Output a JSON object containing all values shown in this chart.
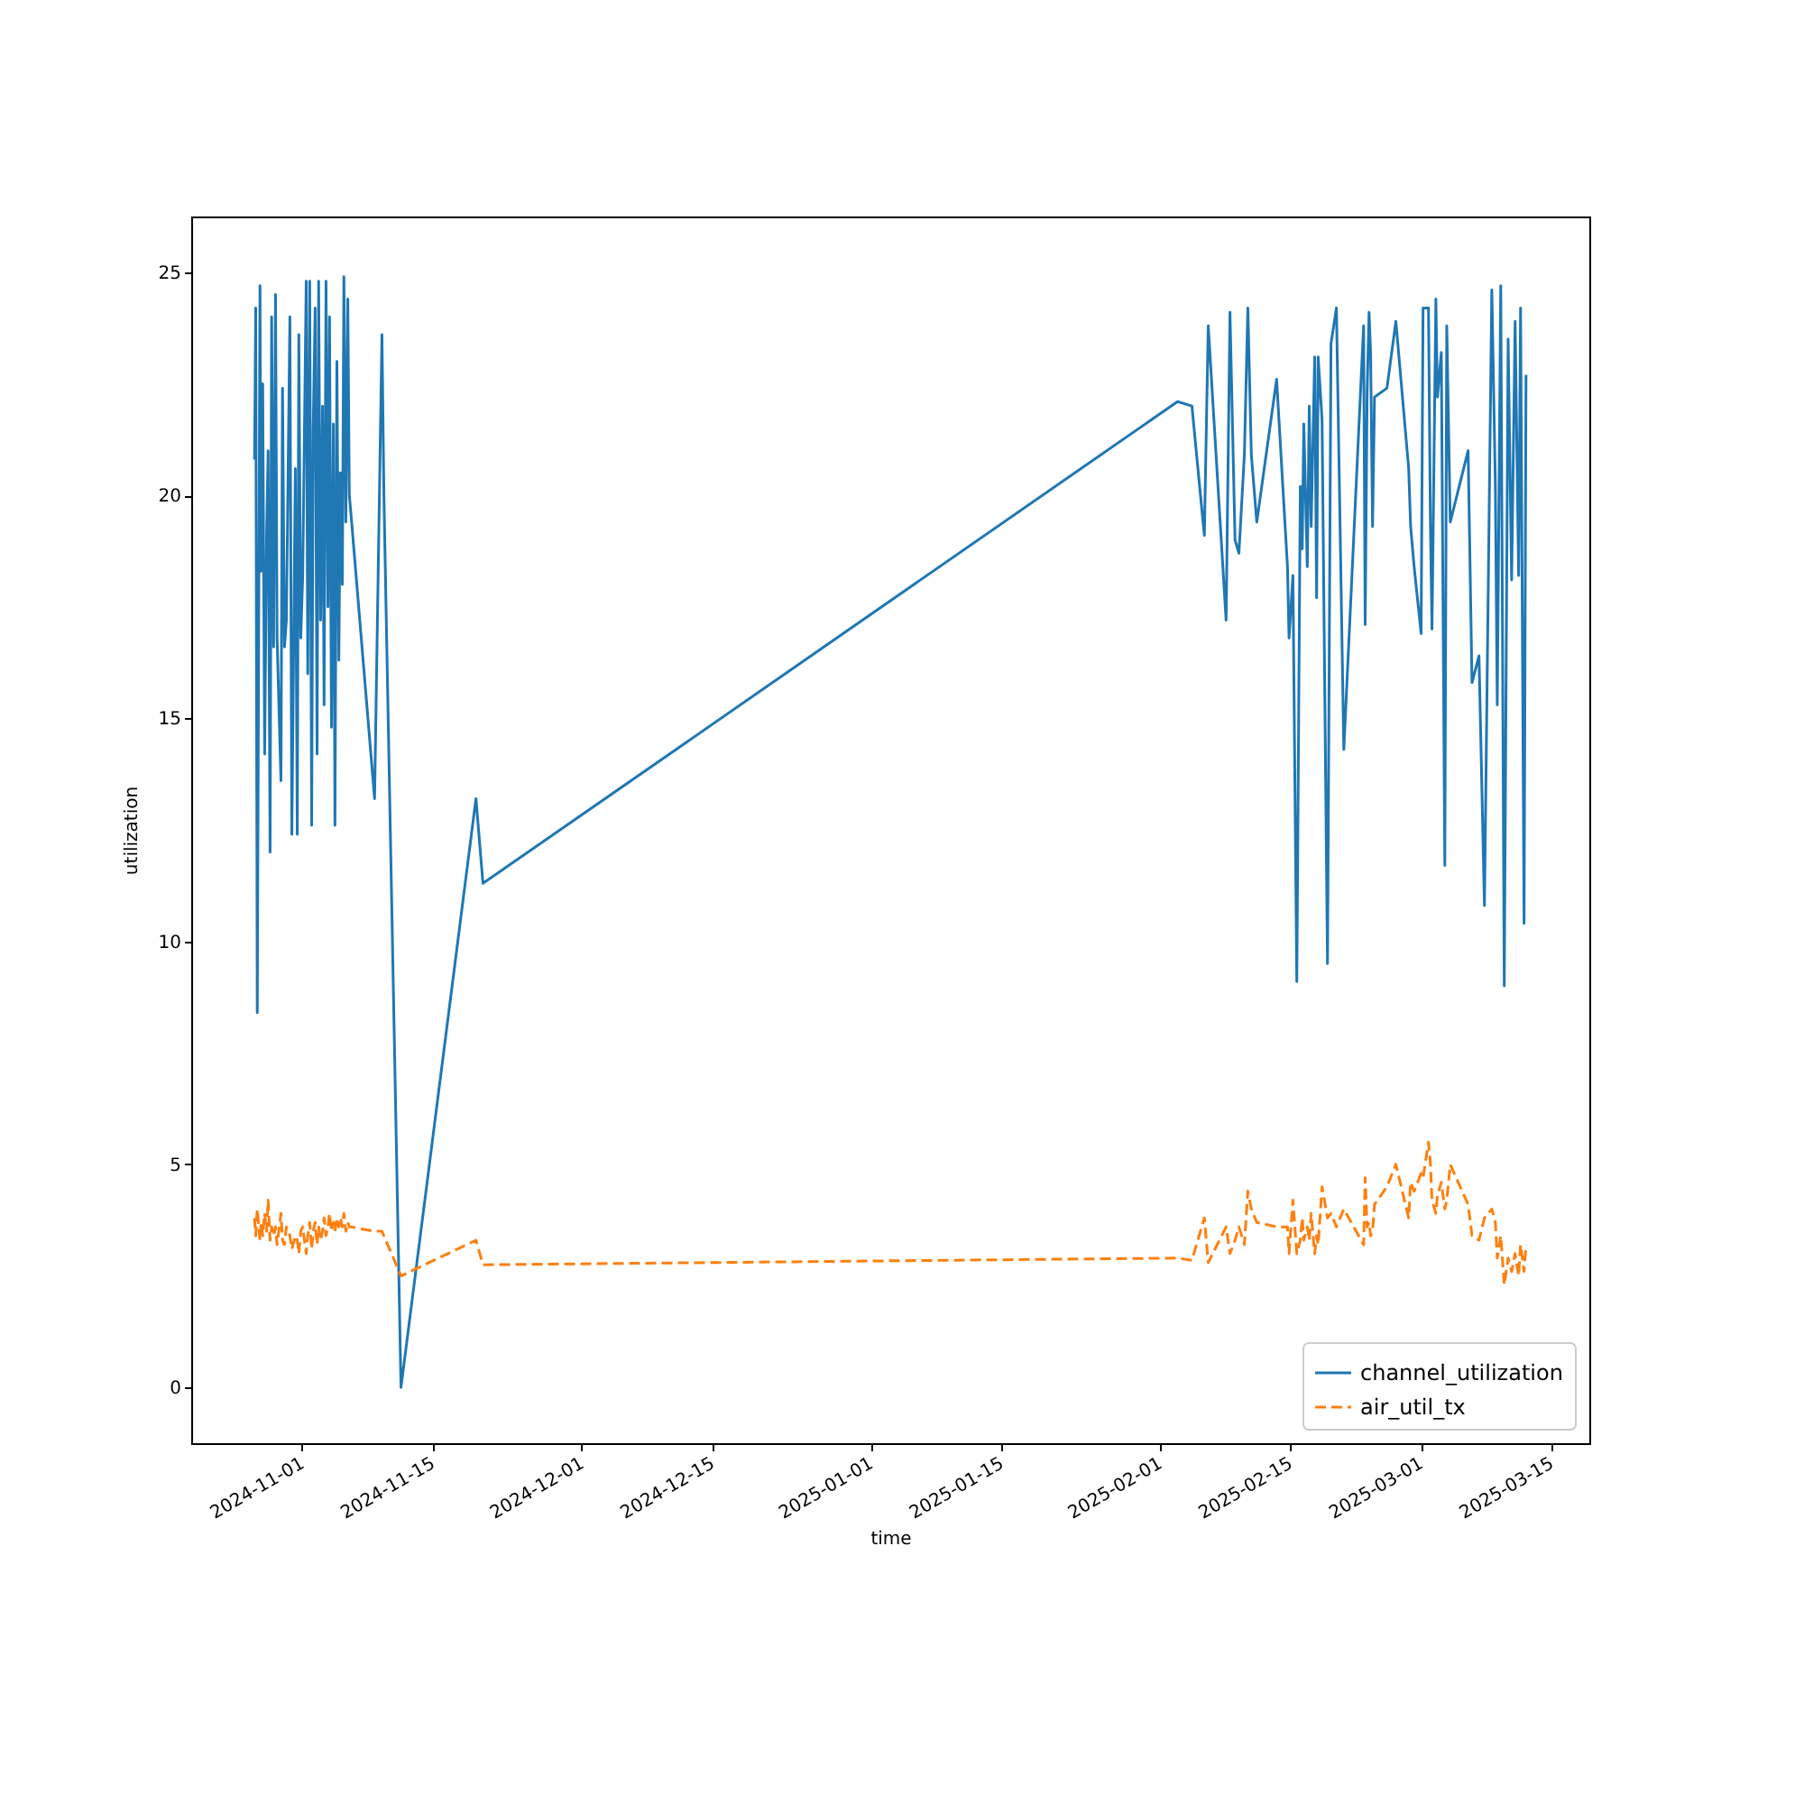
{
  "chart_data": {
    "type": "line",
    "xlabel": "time",
    "ylabel": "utilization",
    "x": [
      "2024-10-26T22:00",
      "2024-10-27T01:00",
      "2024-10-27T05:00",
      "2024-10-27T12:00",
      "2024-10-27T15:00",
      "2024-10-27T19:00",
      "2024-10-28T00:00",
      "2024-10-28T05:00",
      "2024-10-28T09:00",
      "2024-10-28T14:00",
      "2024-10-28T18:00",
      "2024-10-28T23:00",
      "2024-10-29T04:00",
      "2024-10-29T08:00",
      "2024-10-29T18:00",
      "2024-10-29T22:00",
      "2024-10-30T03:00",
      "2024-10-30T08:00",
      "2024-10-30T17:00",
      "2024-10-30T22:00",
      "2024-10-31T07:00",
      "2024-10-31T12:00",
      "2024-10-31T16:00",
      "2024-10-31T21:00",
      "2024-11-01T02:00",
      "2024-11-01T11:00",
      "2024-11-01T15:00",
      "2024-11-01T20:00",
      "2024-11-02T01:00",
      "2024-11-02T05:00",
      "2024-11-02T10:00",
      "2024-11-02T15:00",
      "2024-11-02T19:00",
      "2024-11-03T00:00",
      "2024-11-03T05:00",
      "2024-11-03T09:00",
      "2024-11-03T14:00",
      "2024-11-03T19:00",
      "2024-11-03T23:00",
      "2024-11-04T04:00",
      "2024-11-04T09:00",
      "2024-11-04T13:00",
      "2024-11-04T18:00",
      "2024-11-04T23:00",
      "2024-11-05T03:00",
      "2024-11-05T08:00",
      "2024-11-05T12:00",
      "2024-11-05T17:00",
      "2024-11-05T22:00",
      "2024-11-06T02:00",
      "2024-11-06T07:00",
      "2024-11-08T19:00",
      "2024-11-09T14:00",
      "2024-11-09T19:00",
      "2024-11-11T15:00",
      "2024-11-19T16:00",
      "2024-11-20T10:00",
      "2025-02-02T22:00",
      "2025-02-04T11:00",
      "2025-02-05T19:00",
      "2025-02-06T05:00",
      "2025-02-08T03:00",
      "2025-02-08T13:00",
      "2025-02-09T02:00",
      "2025-02-09T12:00",
      "2025-02-10T02:00",
      "2025-02-10T11:00",
      "2025-02-10T20:00",
      "2025-02-11T10:00",
      "2025-02-13T13:00",
      "2025-02-14T17:00",
      "2025-02-14T21:00",
      "2025-02-15T07:00",
      "2025-02-15T17:00",
      "2025-02-16T02:00",
      "2025-02-16T07:00",
      "2025-02-16T11:00",
      "2025-02-16T20:00",
      "2025-02-17T01:00",
      "2025-02-17T06:00",
      "2025-02-17T15:00",
      "2025-02-17T20:00",
      "2025-02-18T00:00",
      "2025-02-18T10:00",
      "2025-02-19T00:00",
      "2025-02-19T09:00",
      "2025-02-19T23:00",
      "2025-02-20T18:00",
      "2025-02-22T21:00",
      "2025-02-23T01:00",
      "2025-02-23T06:00",
      "2025-02-23T11:00",
      "2025-02-23T15:00",
      "2025-02-23T20:00",
      "2025-02-24T01:00",
      "2025-02-25T09:00",
      "2025-02-26T08:00",
      "2025-02-27T17:00",
      "2025-02-27T22:00",
      "2025-02-28T07:00",
      "2025-03-01T01:00",
      "2025-03-01T06:00",
      "2025-03-01T20:00",
      "2025-03-02T01:00",
      "2025-03-02T05:00",
      "2025-03-02T15:00",
      "2025-03-02T19:00",
      "2025-03-03T05:00",
      "2025-03-03T14:00",
      "2025-03-03T19:00",
      "2025-03-04T04:00",
      "2025-03-06T02:00",
      "2025-03-06T12:00",
      "2025-03-07T06:00",
      "2025-03-07T20:00",
      "2025-03-08T15:00",
      "2025-03-09T00:00",
      "2025-03-09T05:00",
      "2025-03-09T14:00",
      "2025-03-09T23:00",
      "2025-03-10T09:00",
      "2025-03-10T18:00",
      "2025-03-11T03:00",
      "2025-03-11T12:00",
      "2025-03-11T17:00",
      "2025-03-12T02:00",
      "2025-03-12T07:00"
    ],
    "series": [
      {
        "name": "channel_utilization",
        "color": "#1f77b4",
        "line_style": "solid",
        "values": [
          20.8,
          24.2,
          8.4,
          24.7,
          18.3,
          22.5,
          14.2,
          19.1,
          21.0,
          12.0,
          24.0,
          16.6,
          24.5,
          16.8,
          13.6,
          22.4,
          16.6,
          17.2,
          24.0,
          12.4,
          20.6,
          12.4,
          23.6,
          16.8,
          18.2,
          24.8,
          16.0,
          24.8,
          12.6,
          21.5,
          24.2,
          14.2,
          24.8,
          17.2,
          22.0,
          15.3,
          24.8,
          17.5,
          24.0,
          14.8,
          21.6,
          12.6,
          23.0,
          16.3,
          20.5,
          18.0,
          24.9,
          19.4,
          24.4,
          20.0,
          19.5,
          13.2,
          23.6,
          20.0,
          0,
          13.2,
          11.3,
          22.1,
          22.0,
          19.1,
          23.8,
          17.2,
          24.1,
          19.0,
          18.7,
          20.9,
          24.2,
          20.9,
          19.4,
          22.6,
          18.4,
          16.8,
          18.2,
          9.1,
          20.2,
          18.8,
          21.6,
          18.4,
          22.0,
          19.3,
          23.1,
          17.7,
          23.1,
          21.7,
          9.5,
          23.4,
          24.2,
          14.3,
          23.8,
          17.1,
          22.3,
          24.1,
          23.2,
          19.3,
          22.2,
          22.4,
          23.9,
          20.6,
          19.3,
          18.4,
          16.9,
          24.2,
          24.2,
          19.3,
          17.0,
          24.4,
          22.2,
          23.2,
          11.7,
          23.8,
          19.4,
          21.0,
          15.8,
          16.4,
          10.8,
          24.6,
          20.3,
          15.3,
          24.7,
          9.0,
          23.5,
          18.1,
          23.9,
          18.2,
          24.2,
          10.4,
          22.7
        ]
      },
      {
        "name": "air_util_tx",
        "color": "#ff7f0e",
        "line_style": "dashed",
        "values": [
          3.8,
          3.4,
          4.0,
          3.3,
          3.7,
          3.4,
          3.9,
          3.5,
          4.2,
          3.3,
          3.6,
          3.4,
          3.6,
          3.2,
          3.9,
          3.3,
          3.2,
          3.6,
          3.4,
          3.1,
          3.4,
          3.3,
          3.0,
          3.5,
          3.6,
          3.0,
          3.4,
          3.7,
          3.1,
          3.5,
          3.7,
          3.2,
          3.6,
          3.3,
          3.5,
          3.8,
          3.4,
          3.6,
          3.9,
          3.5,
          3.7,
          3.5,
          3.8,
          3.6,
          3.8,
          3.6,
          3.9,
          3.5,
          3.7,
          3.6,
          3.6,
          3.5,
          3.5,
          3.4,
          2.5,
          3.3,
          2.75,
          2.9,
          2.85,
          3.8,
          2.8,
          3.6,
          3.0,
          3.3,
          3.6,
          3.2,
          4.4,
          4.0,
          3.7,
          3.6,
          3.6,
          3.0,
          4.2,
          3.0,
          3.3,
          3.8,
          3.3,
          3.6,
          3.3,
          3.9,
          3.0,
          3.4,
          3.2,
          4.5,
          3.8,
          3.9,
          3.6,
          4.0,
          3.2,
          4.7,
          3.6,
          3.7,
          3.4,
          3.5,
          4.1,
          4.5,
          5.0,
          3.8,
          4.6,
          4.4,
          4.8,
          4.7,
          5.5,
          5.0,
          4.2,
          3.9,
          4.3,
          4.6,
          4.0,
          4.2,
          5.0,
          4.1,
          3.4,
          3.3,
          3.8,
          4.0,
          3.7,
          2.9,
          3.4,
          2.3,
          2.9,
          2.6,
          3.0,
          2.5,
          3.2,
          2.6,
          3.2
        ]
      }
    ],
    "xlim": [
      "2024-10-20T03:00",
      "2025-03-19T02:00"
    ],
    "xticks": [
      "2024-11-01",
      "2024-11-15",
      "2024-12-01",
      "2024-12-15",
      "2025-01-01",
      "2025-01-15",
      "2025-02-01",
      "2025-02-15",
      "2025-03-01",
      "2025-03-15"
    ],
    "ylim": [
      -1.25,
      26.25
    ],
    "yticks": [
      0,
      5,
      10,
      15,
      20,
      25
    ],
    "grid": false,
    "legend": "bottom right",
    "marker": "none"
  }
}
